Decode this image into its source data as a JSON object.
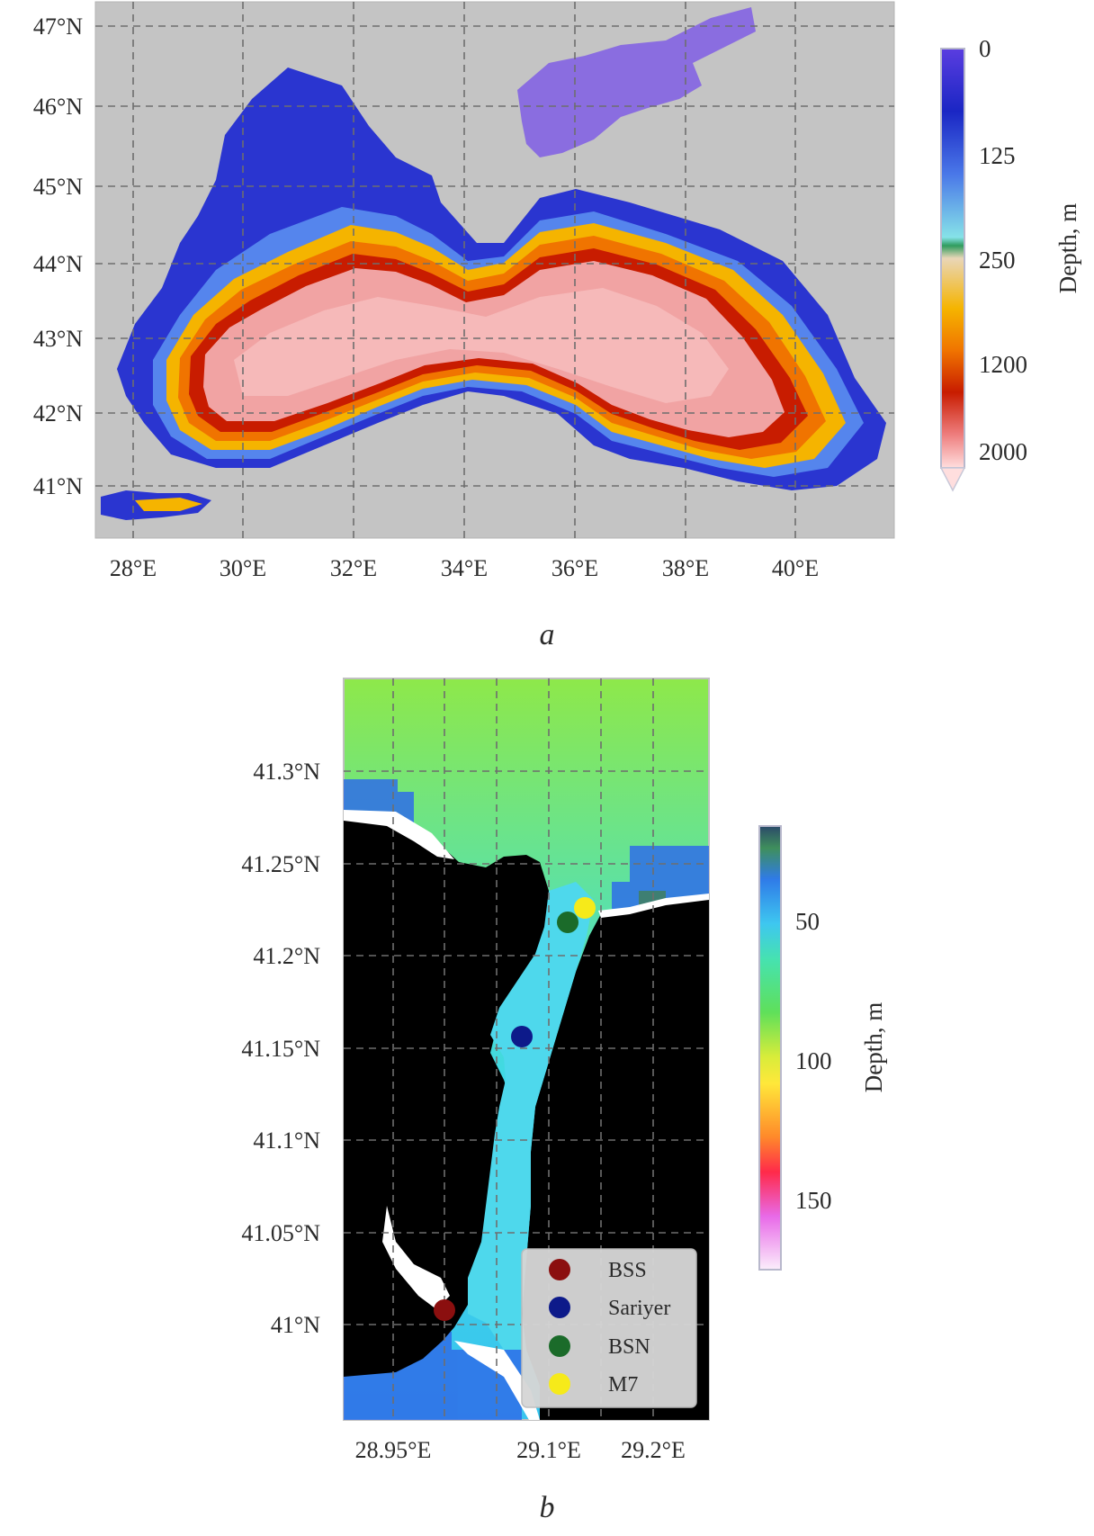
{
  "panel_a": {
    "label": "a",
    "lat_ticks": [
      "47°N",
      "46°N",
      "45°N",
      "44°N",
      "43°N",
      "42°N",
      "41°N"
    ],
    "lon_ticks": [
      "28°E",
      "30°E",
      "32°E",
      "34°E",
      "36°E",
      "38°E",
      "40°E"
    ],
    "colorbar": {
      "label": "Depth, m",
      "ticks": [
        "0",
        "125",
        "250",
        "1200",
        "2000"
      ],
      "colors": [
        "#4a2bd6",
        "#1a2bc9",
        "#4f80e8",
        "#7ad9e6",
        "#e9d6b8",
        "#f5b400",
        "#f07400",
        "#c81c00",
        "#f28a8a",
        "#ffd6d6"
      ]
    },
    "colors": {
      "land": "#c4c4c4",
      "azov": "#8a6de0",
      "shelf": "#2a35d0",
      "deep": "#f1a3a3",
      "slope_outer": "#f5b400",
      "slope_mid": "#e85b0a",
      "slope_inner": "#b81f0a"
    }
  },
  "panel_b": {
    "label": "b",
    "lat_ticks": [
      "41.3°N",
      "41.25°N",
      "41.2°N",
      "41.15°N",
      "41.1°N",
      "41.05°N",
      "41°N"
    ],
    "lon_ticks": [
      "28.95°E",
      "29.1°E",
      "29.2°E"
    ],
    "colorbar": {
      "label": "Depth, m",
      "ticks": [
        "50",
        "100",
        "150"
      ],
      "colors": [
        "#2b4a6a",
        "#3f8f5c",
        "#2f7be8",
        "#3ec7f0",
        "#46e2b0",
        "#5fe05a",
        "#b9e83a",
        "#ffe83a",
        "#ff8a2a",
        "#ff2a4a",
        "#e86ae8",
        "#f7e6f7"
      ]
    },
    "legend": [
      {
        "label": "BSS",
        "color": "#8b0f0f"
      },
      {
        "label": "Sariyer",
        "color": "#0d1a8a"
      },
      {
        "label": "BSN",
        "color": "#1b6b2a"
      },
      {
        "label": "M7",
        "color": "#f6ea1a"
      }
    ],
    "colors": {
      "land": "#000000",
      "strait": "#4ed8ec"
    }
  }
}
